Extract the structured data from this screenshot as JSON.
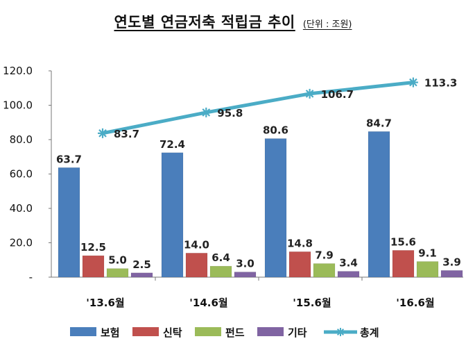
{
  "chart_data": {
    "type": "bar",
    "title": "연도별 연금저축 적립금 추이",
    "unit_note": "(단위 : 조원)",
    "categories": [
      "'13.6월",
      "'14.6월",
      "'15.6월",
      "'16.6월"
    ],
    "series": [
      {
        "name": "보험",
        "type": "bar",
        "color": "#4A7EBB",
        "values": [
          63.7,
          72.4,
          80.6,
          84.7
        ]
      },
      {
        "name": "신탁",
        "type": "bar",
        "color": "#C0504D",
        "values": [
          12.5,
          14.0,
          14.8,
          15.6
        ]
      },
      {
        "name": "펀드",
        "type": "bar",
        "color": "#9BBB59",
        "values": [
          5.0,
          6.4,
          7.9,
          9.1
        ]
      },
      {
        "name": "기타",
        "type": "bar",
        "color": "#8064A2",
        "values": [
          2.5,
          3.0,
          3.4,
          3.9
        ]
      },
      {
        "name": "총계",
        "type": "line",
        "color": "#4BACC6",
        "values": [
          83.7,
          95.8,
          106.7,
          113.3
        ]
      }
    ],
    "data_labels": {
      "보험": [
        "63.7",
        "72.4",
        "80.6",
        "84.7"
      ],
      "신탁": [
        "12.5",
        "14.0",
        "14.8",
        "15.6"
      ],
      "펀드": [
        "5.0",
        "6.4",
        "7.9",
        "9.1"
      ],
      "기타": [
        "2.5",
        "3.0",
        "3.4",
        "3.9"
      ],
      "총계": [
        "83.7",
        "95.8",
        "106.7",
        "113.3"
      ]
    },
    "y_ticks": [
      {
        "value": 0,
        "label": "-"
      },
      {
        "value": 20,
        "label": "20.0"
      },
      {
        "value": 40,
        "label": "40.0"
      },
      {
        "value": 60,
        "label": "60.0"
      },
      {
        "value": 80,
        "label": "80.0"
      },
      {
        "value": 100,
        "label": "100.0"
      },
      {
        "value": 120,
        "label": "120.0"
      }
    ],
    "ylim": [
      0,
      120
    ],
    "grid": false,
    "legend_position": "bottom",
    "xlabel": "",
    "ylabel": ""
  }
}
